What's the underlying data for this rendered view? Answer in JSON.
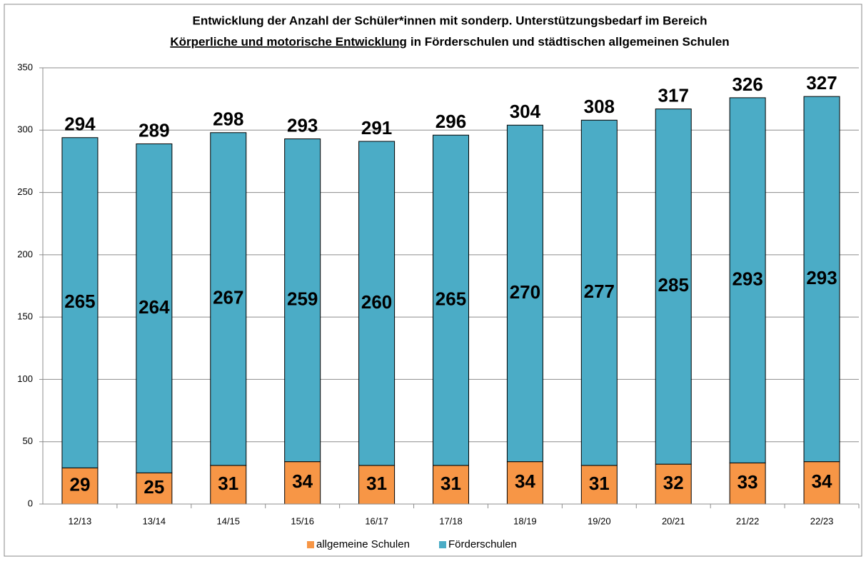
{
  "chart_data": {
    "type": "stacked_bar",
    "title": {
      "line1": "Entwicklung der Anzahl der Schüler*innen mit sonderp. Unterstützungsbedarf im Bereich",
      "line2_underlined": "Körperliche und motorische Entwicklung",
      "line2_rest": "in Förderschulen und städtischen allgemeinen Schulen"
    },
    "categories": [
      "12/13",
      "13/14",
      "14/15",
      "15/16",
      "16/17",
      "17/18",
      "18/19",
      "19/20",
      "20/21",
      "21/22",
      "22/23"
    ],
    "series": [
      {
        "name": "allgemeine Schulen",
        "color": "#f79646",
        "values": [
          29,
          25,
          31,
          34,
          31,
          31,
          34,
          31,
          32,
          33,
          34
        ]
      },
      {
        "name": "Förderschulen",
        "color": "#4bacc6",
        "values": [
          265,
          264,
          267,
          259,
          260,
          265,
          270,
          277,
          285,
          293,
          293
        ]
      }
    ],
    "totals": [
      294,
      289,
      298,
      293,
      291,
      296,
      304,
      308,
      317,
      326,
      327
    ],
    "ylim": [
      0,
      350
    ],
    "yticks": [
      0,
      50,
      100,
      150,
      200,
      250,
      300,
      350
    ],
    "grid": true,
    "legend": "bottom"
  }
}
